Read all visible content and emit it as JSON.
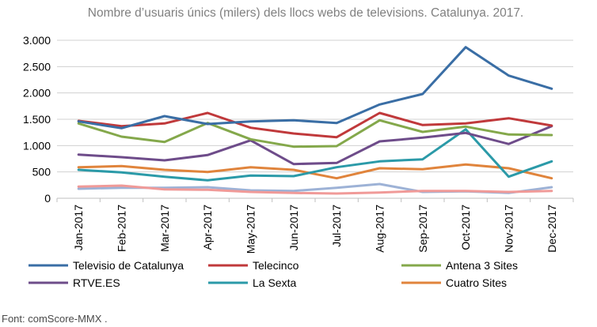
{
  "chart_data": {
    "type": "line",
    "title": "Nombre d’usuaris únics (milers) dels llocs webs de televisions. Catalunya. 2017.",
    "xlabel": "",
    "ylabel": "",
    "ylim": [
      0,
      3000
    ],
    "yticks": [
      0,
      500,
      1000,
      1500,
      2000,
      2500,
      3000
    ],
    "ytick_labels": [
      "0",
      "500",
      "1.000",
      "1.500",
      "2.000",
      "2.500",
      "3.000"
    ],
    "grid": "horizontal",
    "legend_position": "bottom",
    "categories": [
      "Jan-2017",
      "Feb-2017",
      "Mar-2017",
      "Apr-2017",
      "May-2017",
      "Jun-2017",
      "Jul-2017",
      "Aug-2017",
      "Sep-2017",
      "Oct-2017",
      "Nov-2017",
      "Dec-2017"
    ],
    "series": [
      {
        "name": "Televisio de Catalunya",
        "color": "#3a6ea5",
        "values": [
          1460,
          1330,
          1560,
          1410,
          1460,
          1480,
          1430,
          1780,
          1980,
          2870,
          2330,
          2080
        ]
      },
      {
        "name": "Telecinco",
        "color": "#c0393b",
        "values": [
          1470,
          1370,
          1420,
          1620,
          1340,
          1230,
          1160,
          1620,
          1390,
          1420,
          1520,
          1380
        ]
      },
      {
        "name": "Antena 3 Sites",
        "color": "#84a84b",
        "values": [
          1420,
          1170,
          1070,
          1430,
          1120,
          980,
          990,
          1480,
          1260,
          1360,
          1210,
          1200
        ]
      },
      {
        "name": "RTVE.ES",
        "color": "#6e4c8a",
        "values": [
          830,
          780,
          720,
          820,
          1100,
          650,
          670,
          1080,
          1150,
          1240,
          1030,
          1370
        ]
      },
      {
        "name": "La Sexta",
        "color": "#2b9aa8",
        "values": [
          540,
          490,
          410,
          340,
          430,
          420,
          590,
          700,
          740,
          1310,
          410,
          700
        ]
      },
      {
        "name": "Cuatro Sites",
        "color": "#e0843c",
        "values": [
          590,
          610,
          540,
          500,
          590,
          540,
          380,
          570,
          550,
          640,
          570,
          380
        ]
      },
      {
        "color": "#f09a98",
        "values": [
          220,
          240,
          170,
          160,
          120,
          100,
          90,
          110,
          140,
          140,
          120,
          140
        ]
      },
      {
        "color": "#9db2d6",
        "values": [
          180,
          200,
          200,
          210,
          150,
          140,
          200,
          270,
          120,
          130,
          100,
          210
        ]
      }
    ]
  },
  "source": "Font: comScore-MMX ."
}
